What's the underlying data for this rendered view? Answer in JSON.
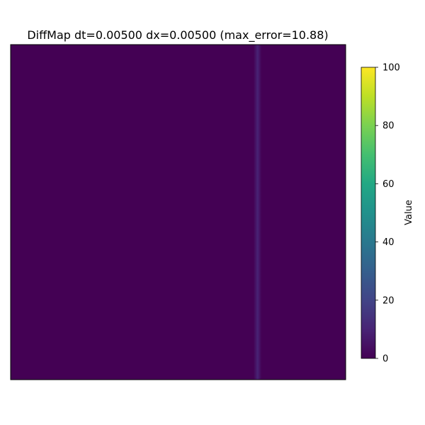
{
  "chart_data": {
    "type": "heatmap",
    "title": "DiffMap dt=0.00500 dx=0.00500 (max_error=10.88)",
    "xlabel": "",
    "ylabel": "",
    "x_ticks": [],
    "y_ticks": [],
    "x_range": [
      0,
      1
    ],
    "colormap": "viridis",
    "background_value": 0,
    "feature": {
      "description": "narrow vertical error band",
      "x_center": 0.737,
      "x_halfwidth": 0.012,
      "peak_value": 10.88
    },
    "max_error": 10.88,
    "colorbar": {
      "label": "Value",
      "min": 0,
      "max": 100,
      "ticks": [
        0,
        20,
        40,
        60,
        80,
        100
      ]
    }
  }
}
